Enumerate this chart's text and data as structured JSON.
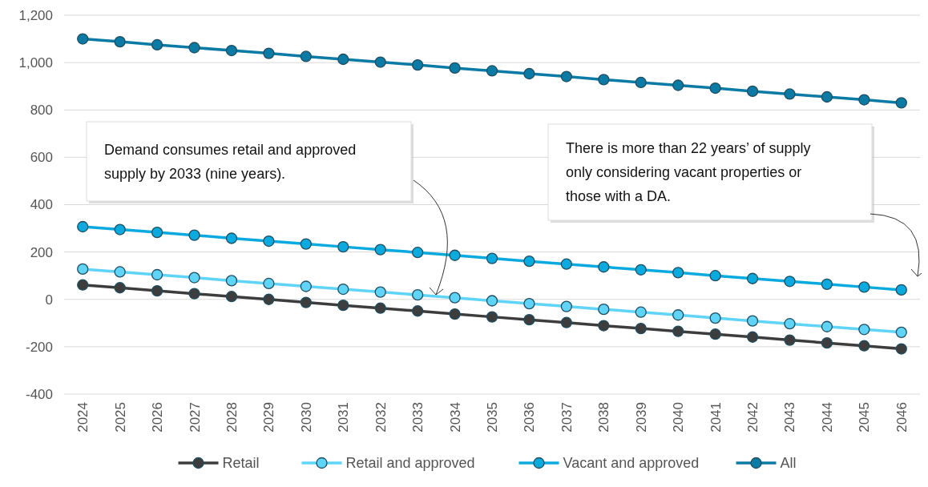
{
  "chart_data": {
    "type": "line",
    "categories": [
      "2024",
      "2025",
      "2026",
      "2027",
      "2028",
      "2029",
      "2030",
      "2031",
      "2032",
      "2033",
      "2034",
      "2035",
      "2036",
      "2037",
      "2038",
      "2039",
      "2040",
      "2041",
      "2042",
      "2043",
      "2044",
      "2045",
      "2046"
    ],
    "series": [
      {
        "name": "Retail",
        "color": "#3d3d3d",
        "values": [
          61,
          49,
          36,
          24,
          12,
          0,
          -13,
          -25,
          -37,
          -49,
          -62,
          -74,
          -86,
          -98,
          -111,
          -123,
          -135,
          -147,
          -159,
          -172,
          -184,
          -196,
          -209
        ]
      },
      {
        "name": "Retail and approved",
        "color": "#5fd4f7",
        "values": [
          128,
          116,
          104,
          92,
          79,
          67,
          55,
          43,
          31,
          19,
          7,
          -6,
          -18,
          -30,
          -42,
          -54,
          -66,
          -79,
          -91,
          -103,
          -115,
          -127,
          -139
        ]
      },
      {
        "name": "Vacant and approved",
        "color": "#0aaade",
        "values": [
          307,
          295,
          283,
          271,
          258,
          246,
          234,
          222,
          210,
          198,
          186,
          173,
          161,
          149,
          137,
          125,
          113,
          100,
          88,
          76,
          64,
          52,
          40
        ]
      },
      {
        "name": "All",
        "color": "#0b7aa5",
        "values": [
          1100,
          1088,
          1075,
          1063,
          1051,
          1039,
          1026,
          1014,
          1002,
          990,
          977,
          965,
          953,
          941,
          928,
          916,
          904,
          892,
          879,
          867,
          855,
          843,
          830
        ]
      }
    ],
    "ylim": [
      -400,
      1200
    ],
    "yticks": [
      {
        "value": -400,
        "label": "-400"
      },
      {
        "value": -200,
        "label": "-200"
      },
      0,
      200,
      400,
      600,
      800,
      {
        "value": 1000,
        "label": "1,000"
      },
      {
        "value": 1200,
        "label": "1,200"
      }
    ],
    "grid": "y",
    "legend": "bottom",
    "marker": "circle",
    "line_style": "solid",
    "annotations": [
      "Demand consumes retail and approved supply by 2033 (nine years).",
      "There is more than 22 years’ of supply only considering vacant properties or those with a DA."
    ]
  }
}
